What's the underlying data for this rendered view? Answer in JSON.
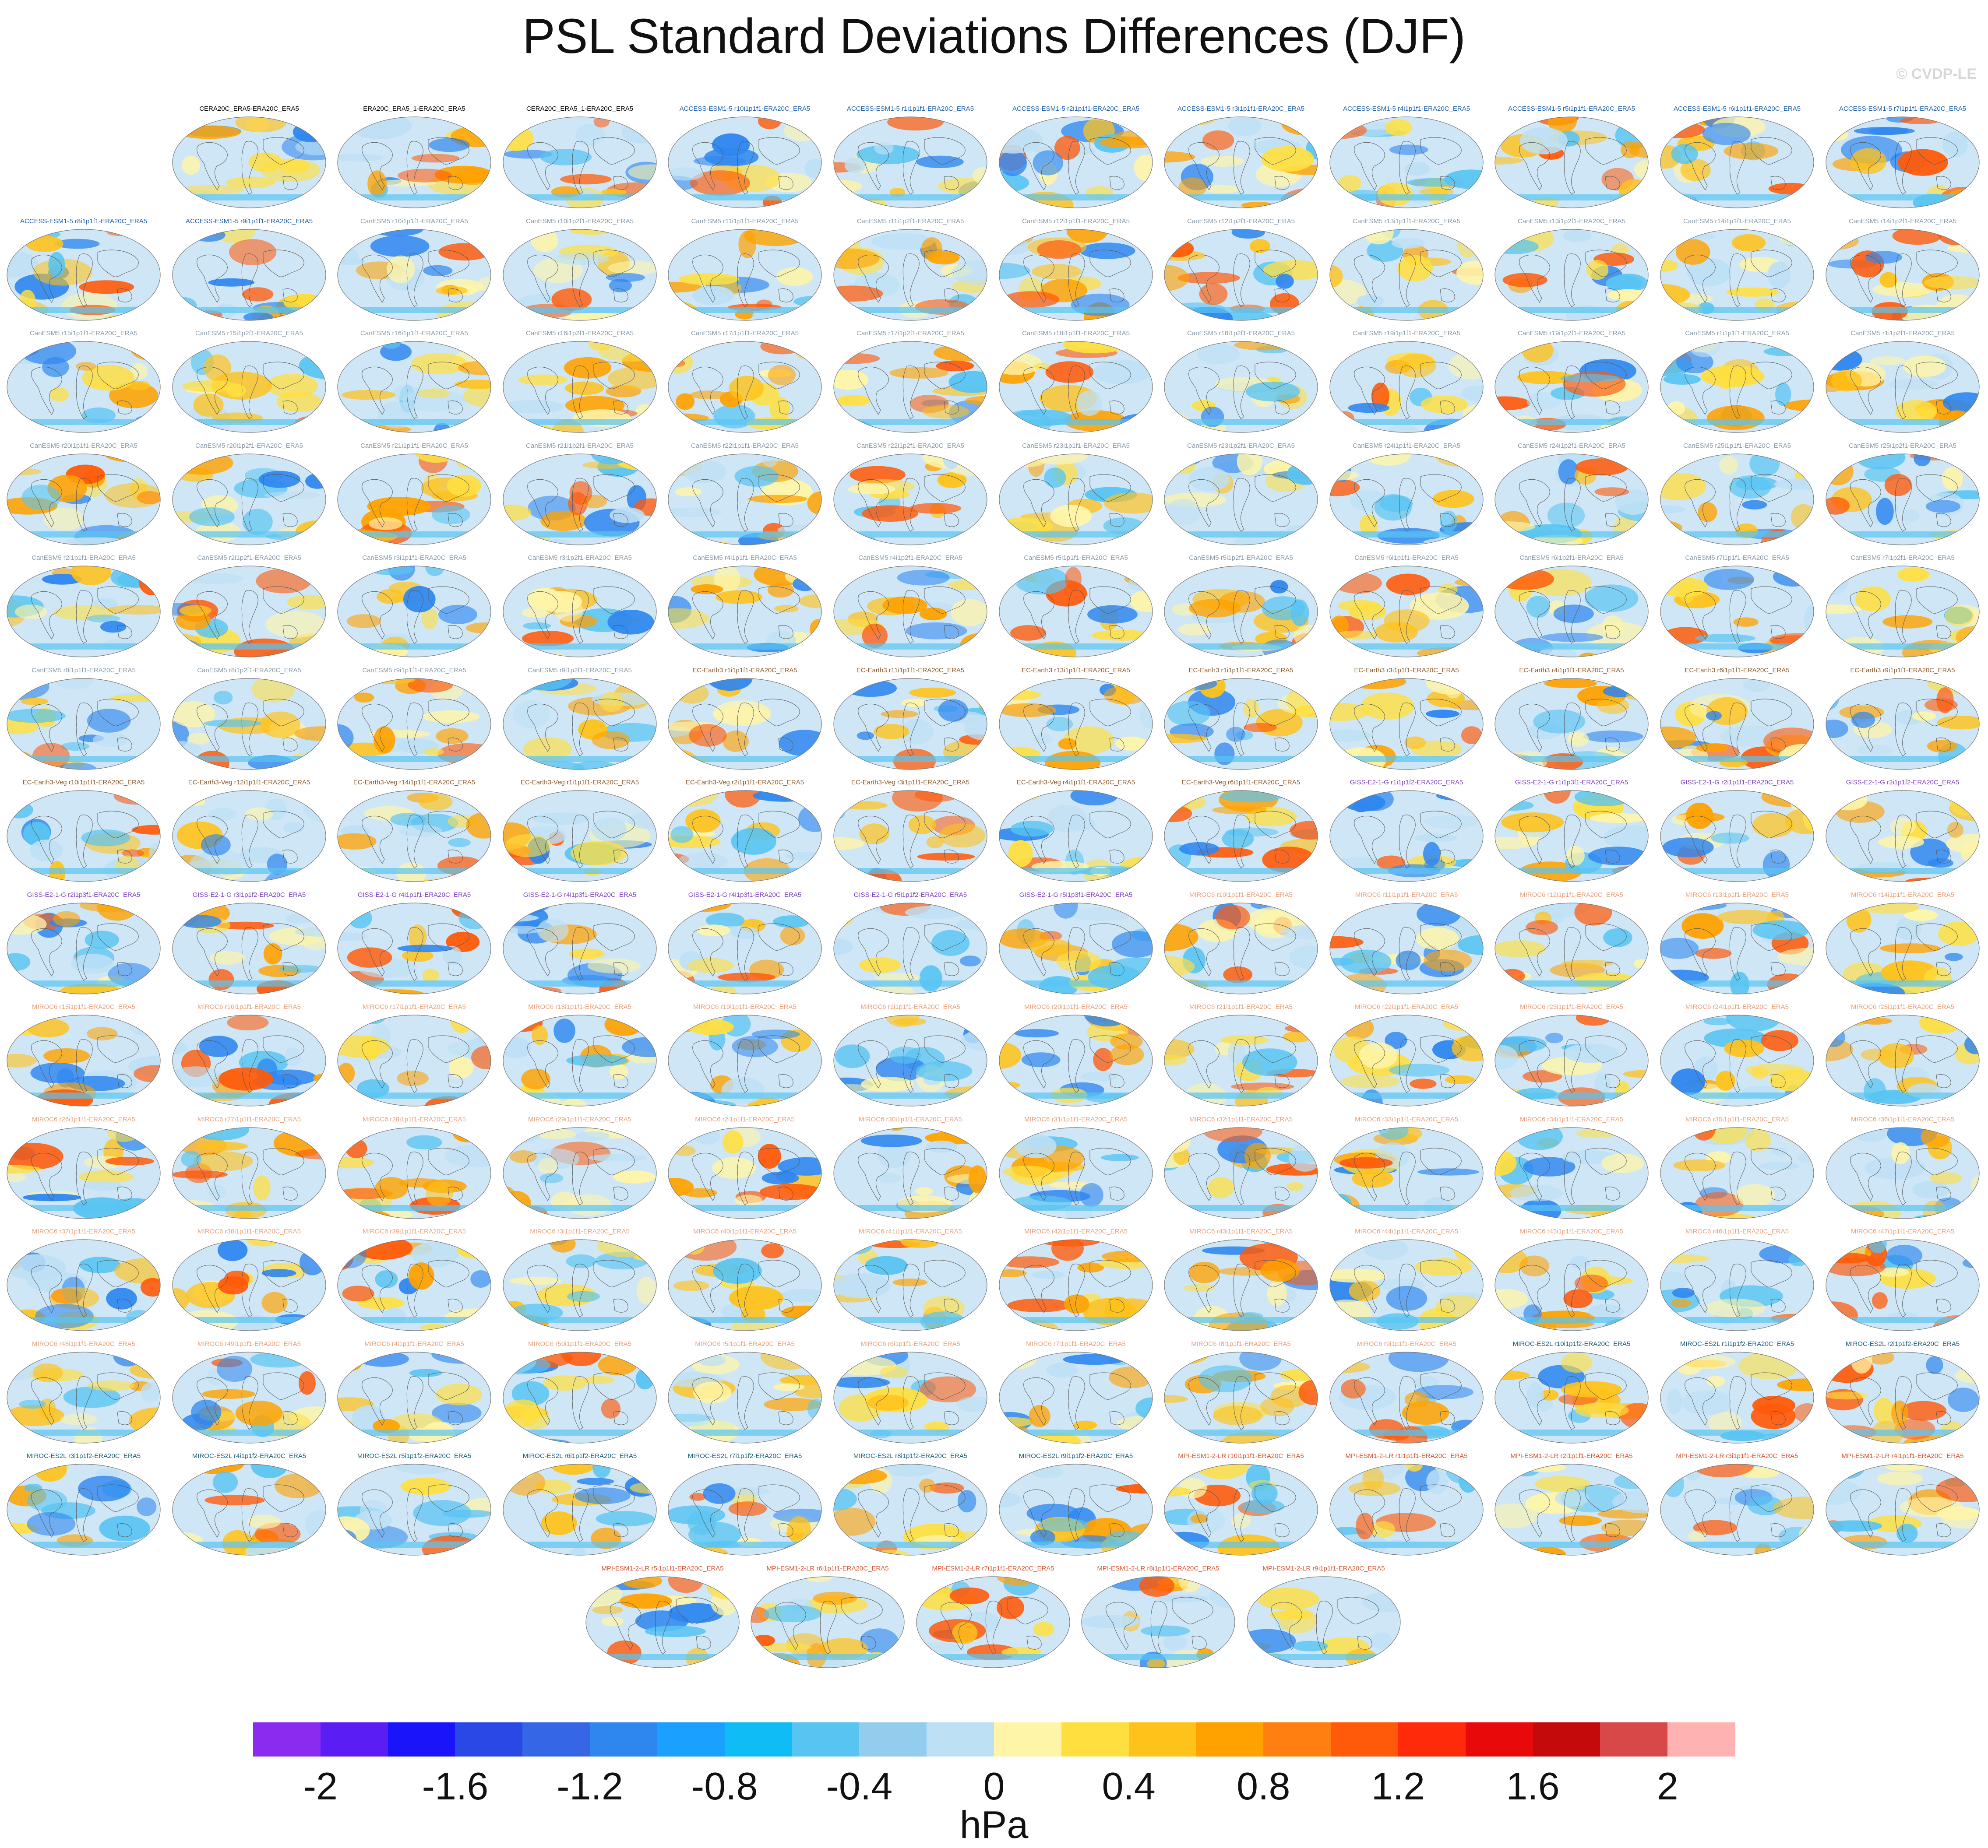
{
  "title": "PSL Standard Deviations Differences (DJF)",
  "watermark": "© CVDP-LE",
  "rows": [
    [
      "CERA20C_ERA5-ERA20C_ERA5",
      "ERA20C_ERA5_1-ERA20C_ERA5",
      "CERA20C_ERA5_1-ERA20C_ERA5",
      "ACCESS-ESM1-5 r10i1p1f1-ERA20C_ERA5",
      "ACCESS-ESM1-5 r1i1p1f1-ERA20C_ERA5",
      "ACCESS-ESM1-5 r2i1p1f1-ERA20C_ERA5",
      "ACCESS-ESM1-5 r3i1p1f1-ERA20C_ERA5",
      "ACCESS-ESM1-5 r4i1p1f1-ERA20C_ERA5",
      "ACCESS-ESM1-5 r5i1p1f1-ERA20C_ERA5",
      "ACCESS-ESM1-5 r6i1p1f1-ERA20C_ERA5",
      "ACCESS-ESM1-5 r7i1p1f1-ERA20C_ERA5"
    ],
    [
      "ACCESS-ESM1-5 r8i1p1f1-ERA20C_ERA5",
      "ACCESS-ESM1-5 r9i1p1f1-ERA20C_ERA5",
      "CanESM5 r10i1p1f1-ERA20C_ERA5",
      "CanESM5 r10i1p2f1-ERA20C_ERA5",
      "CanESM5 r11i1p1f1-ERA20C_ERA5",
      "CanESM5 r11i1p2f1-ERA20C_ERA5",
      "CanESM5 r12i1p1f1-ERA20C_ERA5",
      "CanESM5 r12i1p2f1-ERA20C_ERA5",
      "CanESM5 r13i1p1f1-ERA20C_ERA5",
      "CanESM5 r13i1p2f1-ERA20C_ERA5",
      "CanESM5 r14i1p1f1-ERA20C_ERA5",
      "CanESM5 r14i1p2f1-ERA20C_ERA5"
    ],
    [
      "CanESM5 r15i1p1f1-ERA20C_ERA5",
      "CanESM5 r15i1p2f1-ERA20C_ERA5",
      "CanESM5 r16i1p1f1-ERA20C_ERA5",
      "CanESM5 r16i1p2f1-ERA20C_ERA5",
      "CanESM5 r17i1p1f1-ERA20C_ERA5",
      "CanESM5 r17i1p2f1-ERA20C_ERA5",
      "CanESM5 r18i1p1f1-ERA20C_ERA5",
      "CanESM5 r18i1p2f1-ERA20C_ERA5",
      "CanESM5 r19i1p1f1-ERA20C_ERA5",
      "CanESM5 r19i1p2f1-ERA20C_ERA5",
      "CanESM5 r1i1p1f1-ERA20C_ERA5",
      "CanESM5 r1i1p2f1-ERA20C_ERA5"
    ],
    [
      "CanESM5 r20i1p1f1-ERA20C_ERA5",
      "CanESM5 r20i1p2f1-ERA20C_ERA5",
      "CanESM5 r21i1p1f1-ERA20C_ERA5",
      "CanESM5 r21i1p2f1-ERA20C_ERA5",
      "CanESM5 r22i1p1f1-ERA20C_ERA5",
      "CanESM5 r22i1p2f1-ERA20C_ERA5",
      "CanESM5 r23i1p1f1-ERA20C_ERA5",
      "CanESM5 r23i1p2f1-ERA20C_ERA5",
      "CanESM5 r24i1p1f1-ERA20C_ERA5",
      "CanESM5 r24i1p2f1-ERA20C_ERA5",
      "CanESM5 r25i1p1f1-ERA20C_ERA5",
      "CanESM5 r25i1p2f1-ERA20C_ERA5"
    ],
    [
      "CanESM5 r2i1p1f1-ERA20C_ERA5",
      "CanESM5 r2i1p2f1-ERA20C_ERA5",
      "CanESM5 r3i1p1f1-ERA20C_ERA5",
      "CanESM5 r3i1p2f1-ERA20C_ERA5",
      "CanESM5 r4i1p1f1-ERA20C_ERA5",
      "CanESM5 r4i1p2f1-ERA20C_ERA5",
      "CanESM5 r5i1p1f1-ERA20C_ERA5",
      "CanESM5 r5i1p2f1-ERA20C_ERA5",
      "CanESM5 r6i1p1f1-ERA20C_ERA5",
      "CanESM5 r6i1p2f1-ERA20C_ERA5",
      "CanESM5 r7i1p1f1-ERA20C_ERA5",
      "CanESM5 r7i1p2f1-ERA20C_ERA5"
    ],
    [
      "CanESM5 r8i1p1f1-ERA20C_ERA5",
      "CanESM5 r8i1p2f1-ERA20C_ERA5",
      "CanESM5 r9i1p1f1-ERA20C_ERA5",
      "CanESM5 r9i1p2f1-ERA20C_ERA5",
      "EC-Earth3 r1i1p1f1-ERA20C_ERA5",
      "EC-Earth3 r11i1p1f1-ERA20C_ERA5",
      "EC-Earth3 r13i1p1f1-ERA20C_ERA5",
      "EC-Earth3 r1i1p1f1-ERA20C_ERA5",
      "EC-Earth3 r3i1p1f1-ERA20C_ERA5",
      "EC-Earth3 r4i1p1f1-ERA20C_ERA5",
      "EC-Earth3 r6i1p1f1-ERA20C_ERA5",
      "EC-Earth3 r9i1p1f1-ERA20C_ERA5"
    ],
    [
      "EC-Earth3-Veg r10i1p1f1-ERA20C_ERA5",
      "EC-Earth3-Veg r12i1p1f1-ERA20C_ERA5",
      "EC-Earth3-Veg r14i1p1f1-ERA20C_ERA5",
      "EC-Earth3-Veg r1i1p1f1-ERA20C_ERA5",
      "EC-Earth3-Veg r2i1p1f1-ERA20C_ERA5",
      "EC-Earth3-Veg r3i1p1f1-ERA20C_ERA5",
      "EC-Earth3-Veg r4i1p1f1-ERA20C_ERA5",
      "EC-Earth3-Veg r6i1p1f1-ERA20C_ERA5",
      "GISS-E2-1-G r1i1p1f2-ERA20C_ERA5",
      "GISS-E2-1-G r1i1p3f1-ERA20C_ERA5",
      "GISS-E2-1-G r2i1p1f1-ERA20C_ERA5",
      "GISS-E2-1-G r2i1p1f2-ERA20C_ERA5"
    ],
    [
      "GISS-E2-1-G r2i1p3f1-ERA20C_ERA5",
      "GISS-E2-1-G r3i1p1f2-ERA20C_ERA5",
      "GISS-E2-1-G r4i1p1f1-ERA20C_ERA5",
      "GISS-E2-1-G r4i1p3f1-ERA20C_ERA5",
      "GISS-E2-1-G r4i1p3f1-ERA20C_ERA5",
      "GISS-E2-1-G r5i1p1f2-ERA20C_ERA5",
      "GISS-E2-1-G r5i1p3f1-ERA20C_ERA5",
      "MIROC6 r10i1p1f1-ERA20C_ERA5",
      "MIROC6 r11i1p1f1-ERA20C_ERA5",
      "MIROC6 r12i1p1f1-ERA20C_ERA5",
      "MIROC6 r13i1p1f1-ERA20C_ERA5",
      "MIROC6 r14i1p1f1-ERA20C_ERA5"
    ],
    [
      "MIROC6 r15i1p1f1-ERA20C_ERA5",
      "MIROC6 r16i1p1f1-ERA20C_ERA5",
      "MIROC6 r17i1p1f1-ERA20C_ERA5",
      "MIROC6 r18i1p1f1-ERA20C_ERA5",
      "MIROC6 r19i1p1f1-ERA20C_ERA5",
      "MIROC6 r1i1p1f1-ERA20C_ERA5",
      "MIROC6 r20i1p1f1-ERA20C_ERA5",
      "MIROC6 r21i1p1f1-ERA20C_ERA5",
      "MIROC6 r22i1p1f1-ERA20C_ERA5",
      "MIROC6 r23i1p1f1-ERA20C_ERA5",
      "MIROC6 r24i1p1f1-ERA20C_ERA5",
      "MIROC6 r25i1p1f1-ERA20C_ERA5"
    ],
    [
      "MIROC6 r26i1p1f1-ERA20C_ERA5",
      "MIROC6 r27i1p1f1-ERA20C_ERA5",
      "MIROC6 r28i1p1f1-ERA20C_ERA5",
      "MIROC6 r29i1p1f1-ERA20C_ERA5",
      "MIROC6 r2i1p1f1-ERA20C_ERA5",
      "MIROC6 r30i1p1f1-ERA20C_ERA5",
      "MIROC6 r31i1p1f1-ERA20C_ERA5",
      "MIROC6 r32i1p1f1-ERA20C_ERA5",
      "MIROC6 r33i1p1f1-ERA20C_ERA5",
      "MIROC6 r34i1p1f1-ERA20C_ERA5",
      "MIROC6 r35i1p1f1-ERA20C_ERA5",
      "MIROC6 r36i1p1f1-ERA20C_ERA5"
    ],
    [
      "MIROC6 r37i1p1f1-ERA20C_ERA5",
      "MIROC6 r38i1p1f1-ERA20C_ERA5",
      "MIROC6 r39i1p1f1-ERA20C_ERA5",
      "MIROC6 r3i1p1f1-ERA20C_ERA5",
      "MIROC6 r40i1p1f1-ERA20C_ERA5",
      "MIROC6 r41i1p1f1-ERA20C_ERA5",
      "MIROC6 r42i1p1f1-ERA20C_ERA5",
      "MIROC6 r43i1p1f1-ERA20C_ERA5",
      "MIROC6 r44i1p1f1-ERA20C_ERA5",
      "MIROC6 r45i1p1f1-ERA20C_ERA5",
      "MIROC6 r46i1p1f1-ERA20C_ERA5",
      "MIROC6 r47i1p1f1-ERA20C_ERA5"
    ],
    [
      "MIROC6 r48i1p1f1-ERA20C_ERA5",
      "MIROC6 r49i1p1f1-ERA20C_ERA5",
      "MIROC6 r4i1p1f1-ERA20C_ERA5",
      "MIROC6 r50i1p1f1-ERA20C_ERA5",
      "MIROC6 r5i1p1f1-ERA20C_ERA5",
      "MIROC6 r6i1p1f1-ERA20C_ERA5",
      "MIROC6 r7i1p1f1-ERA20C_ERA5",
      "MIROC6 r8i1p1f1-ERA20C_ERA5",
      "MIROC6 r9i1p1f1-ERA20C_ERA5",
      "MIROC-ES2L r10i1p1f2-ERA20C_ERA5",
      "MIROC-ES2L r1i1p1f2-ERA20C_ERA5",
      "MIROC-ES2L r2i1p1f2-ERA20C_ERA5"
    ],
    [
      "MIROC-ES2L r3i1p1f2-ERA20C_ERA5",
      "MIROC-ES2L r4i1p1f2-ERA20C_ERA5",
      "MIROC-ES2L r5i1p1f2-ERA20C_ERA5",
      "MIROC-ES2L r6i1p1f2-ERA20C_ERA5",
      "MIROC-ES2L r7i1p1f2-ERA20C_ERA5",
      "MIROC-ES2L r8i1p1f2-ERA20C_ERA5",
      "MIROC-ES2L r9i1p1f2-ERA20C_ERA5",
      "MPI-ESM1-2-LR r10i1p1f1-ERA20C_ERA5",
      "MPI-ESM1-2-LR r1i1p1f1-ERA20C_ERA5",
      "MPI-ESM1-2-LR r2i1p1f1-ERA20C_ERA5",
      "MPI-ESM1-2-LR r3i1p1f1-ERA20C_ERA5",
      "MPI-ESM1-2-LR r4i1p1f1-ERA20C_ERA5"
    ],
    [
      "MPI-ESM1-2-LR r5i1p1f1-ERA20C_ERA5",
      "MPI-ESM1-2-LR r6i1p1f1-ERA20C_ERA5",
      "MPI-ESM1-2-LR r7i1p1f1-ERA20C_ERA5",
      "MPI-ESM1-2-LR r8i1p1f1-ERA20C_ERA5",
      "MPI-ESM1-2-LR r9i1p1f1-ERA20C_ERA5"
    ]
  ],
  "model_colors": {
    "CERA20C": "#000000",
    "ERA20C": "#000000",
    "ACCESS-ESM1-5": "#1f5fa8",
    "CanESM5": "#8a9aa8",
    "EC-Earth3": "#8b5a2b",
    "GISS-E2-1-G": "#7b3fbf",
    "MIROC6": "#e8a07a",
    "MIROC-ES2L": "#1b5e7a",
    "MPI-ESM1-2-LR": "#d9532e"
  },
  "colorbar": {
    "unit": "hPa",
    "colors": [
      "#8c2bf0",
      "#5a1ef5",
      "#1a14fa",
      "#2a48e6",
      "#3466e6",
      "#2e86ef",
      "#1aa0ff",
      "#10bcf5",
      "#58c4f2",
      "#92cdee",
      "#bee0f5",
      "#fff5a8",
      "#ffdf40",
      "#ffc21a",
      "#ffa200",
      "#ff8010",
      "#ff5a0a",
      "#ff2a0a",
      "#e80a0a",
      "#c40a0a",
      "#d84848",
      "#ffb2b2"
    ],
    "ticks": [
      "-2",
      "-1.6",
      "-1.2",
      "-0.8",
      "-0.4",
      "0",
      "0.4",
      "0.8",
      "1.2",
      "1.6",
      "2"
    ]
  }
}
